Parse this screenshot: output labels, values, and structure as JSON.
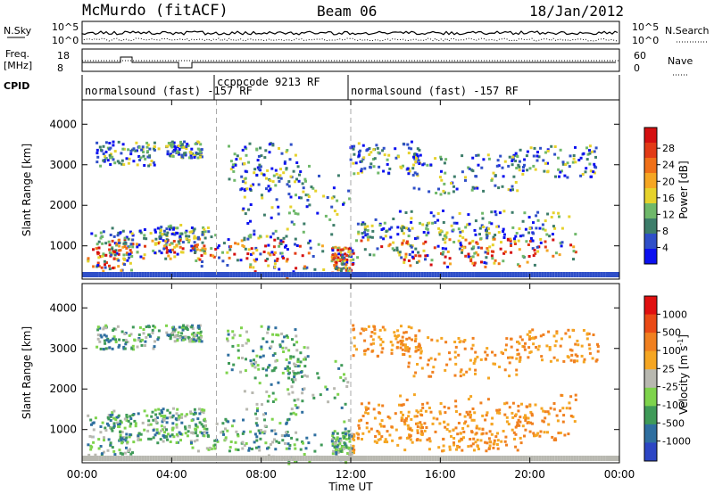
{
  "header": {
    "station": "McMurdo (fitACF)",
    "beam": "Beam 06",
    "date": "18/Jan/2012"
  },
  "top_panels": {
    "nsky_label": "N.Sky",
    "nsearch_label": "N.Search",
    "noise_ticks": [
      "10^5",
      "10^0"
    ],
    "noise_ticks_right": [
      "10^5",
      "10^0"
    ],
    "freq_label_1": "Freq.",
    "freq_label_2": "[MHz]",
    "freq_ticks": [
      "18",
      "8"
    ],
    "nave_label": "Nave",
    "nave_ticks": [
      "60",
      "0"
    ],
    "cpid_label": "CPID",
    "cpid_segments": [
      "normalsound (fast) -157 RF",
      "ccppcode 9213 RF",
      "normalsound (fast) -157 RF"
    ]
  },
  "chart_data": [
    {
      "type": "heatmap",
      "title": "",
      "xlabel": "Time UT",
      "ylabel": "Slant Range [km]",
      "x_ticks": [
        "00:00",
        "04:00",
        "08:00",
        "12:00",
        "16:00",
        "20:00",
        "00:00"
      ],
      "y_ticks": [
        1000,
        2000,
        3000,
        4000
      ],
      "xlim_hours": [
        0,
        24
      ],
      "ylim_km": [
        180,
        4600
      ],
      "colorbar_label": "Power [dB]",
      "colorbar_ticks": [
        "4",
        "8",
        "12",
        "16",
        "20",
        "24",
        "28"
      ],
      "colorbar_colors": [
        "#0b10f0",
        "#2f4fc8",
        "#3d7d6a",
        "#6fb86a",
        "#e6d22c",
        "#f5a623",
        "#f07018",
        "#e23a16",
        "#d40f10"
      ],
      "vlines_hours": [
        6.0,
        12.0
      ]
    },
    {
      "type": "heatmap",
      "title": "",
      "xlabel": "Time UT",
      "ylabel": "Slant Range [km]",
      "x_ticks": [
        "00:00",
        "04:00",
        "08:00",
        "12:00",
        "16:00",
        "20:00",
        "00:00"
      ],
      "y_ticks": [
        1000,
        2000,
        3000,
        4000
      ],
      "xlim_hours": [
        0,
        24
      ],
      "ylim_km": [
        180,
        4600
      ],
      "colorbar_label": "Velocity [m s",
      "colorbar_label_sup": "-1",
      "colorbar_label_tail": "]",
      "colorbar_ticks": [
        "1000",
        "500",
        "100",
        "25",
        "-25",
        "-100",
        "-500",
        "-1000"
      ],
      "colorbar_colors": [
        "#2d46c4",
        "#2f6fa0",
        "#3f9a58",
        "#7ed34c",
        "#b8b8b0",
        "#f5a623",
        "#f08020",
        "#ea4a16",
        "#e01010"
      ],
      "vlines_hours": [
        6.0,
        12.0
      ]
    }
  ],
  "axis": {
    "xlabel": "Time UT"
  }
}
